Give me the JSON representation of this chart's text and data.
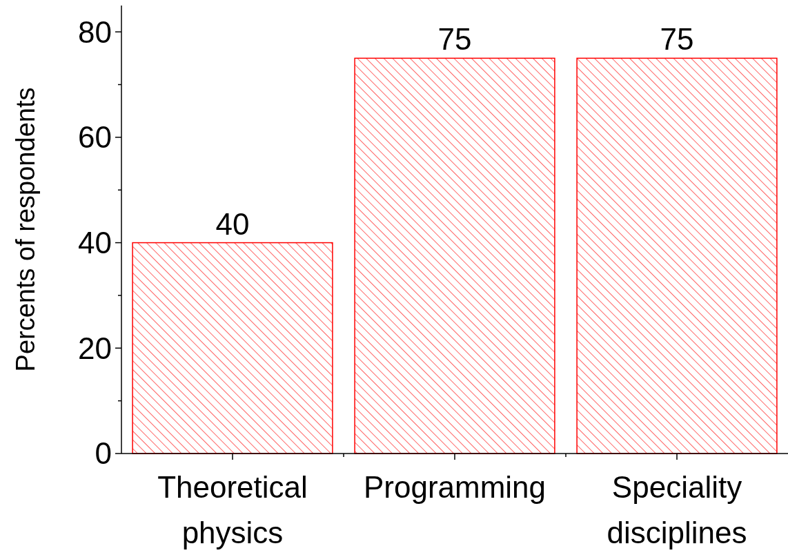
{
  "chart_data": {
    "type": "bar",
    "ylabel": "Percents of respondents",
    "categories": [
      "Theoretical physics",
      "Programming",
      "Speciality disciplines"
    ],
    "values": [
      40,
      75,
      75
    ],
    "color": "#ff0000",
    "data_labels": true,
    "ylim": [
      0,
      85
    ],
    "yticks": [
      0,
      {
        "value": 10,
        "label": null
      },
      20,
      {
        "value": 30,
        "label": null
      },
      40,
      {
        "value": 50,
        "label": null
      },
      60,
      {
        "value": 70,
        "label": null
      },
      80
    ],
    "grid": false
  }
}
